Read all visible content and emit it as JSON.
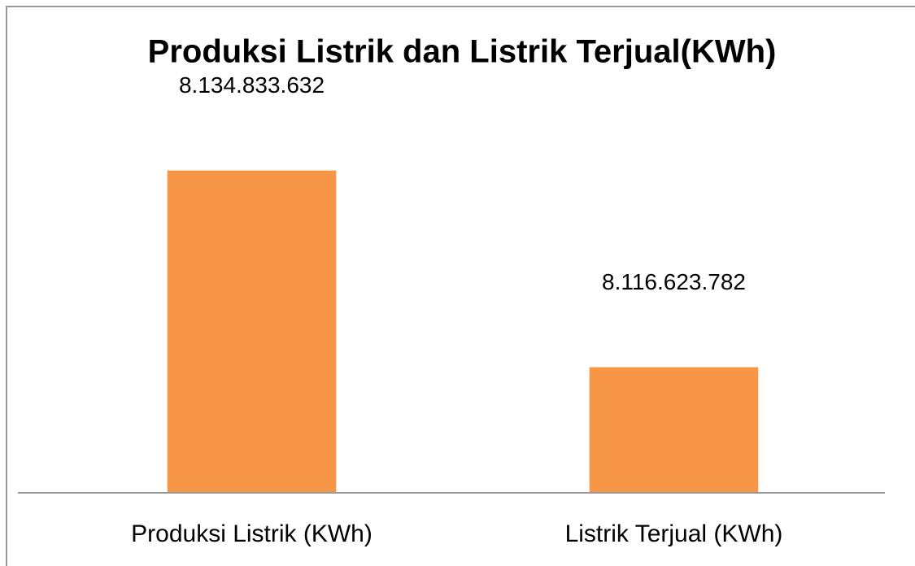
{
  "chart_data": {
    "type": "bar",
    "title": "Produksi Listrik dan Listrik Terjual(KWh)",
    "categories": [
      "Produksi Listrik (KWh)",
      "Listrik Terjual (KWh)"
    ],
    "values": [
      8134833632,
      8116623782
    ],
    "value_labels": [
      "8.134.833.632",
      "8.116.623.782"
    ],
    "color": "#f79646",
    "ylim": [
      8105000000,
      8140000000
    ]
  }
}
